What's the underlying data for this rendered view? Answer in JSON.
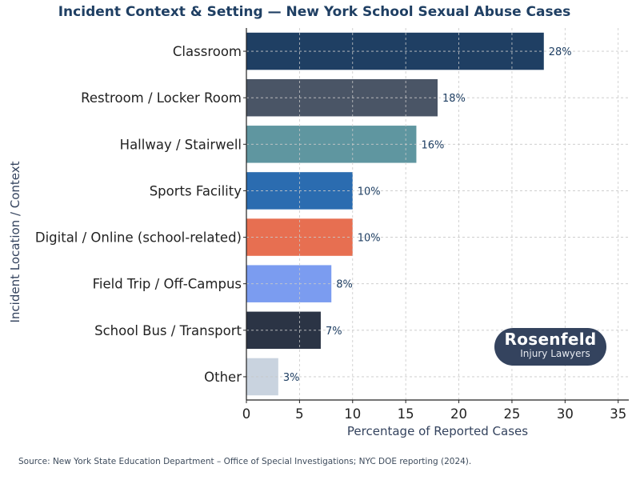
{
  "title": "Incident Context & Setting — New York School Sexual Abuse Cases",
  "source": "Source: New York State Education Department – Office of Special Investigations; NYC DOE reporting (2024).",
  "logo": {
    "line1": "Rosenfeld",
    "line2": "Injury Lawyers"
  },
  "chart_data": {
    "type": "bar",
    "orientation": "horizontal",
    "title": "Incident Context & Setting — New York School Sexual Abuse Cases",
    "xlabel": "Percentage of Reported Cases",
    "ylabel": "Incident Location / Context",
    "categories": [
      "Classroom",
      "Restroom / Locker Room",
      "Hallway / Stairwell",
      "Sports Facility",
      "Digital / Online (school-related)",
      "Field Trip / Off-Campus",
      "School Bus / Transport",
      "Other"
    ],
    "values": [
      28,
      18,
      16,
      10,
      10,
      8,
      7,
      3
    ],
    "data_labels": [
      "28%",
      "18%",
      "16%",
      "10%",
      "10%",
      "8%",
      "7%",
      "3%"
    ],
    "colors": [
      "#1f3f63",
      "#4a5566",
      "#5f96a0",
      "#2b6cb0",
      "#e76f51",
      "#7b9cf0",
      "#2b3445",
      "#c9d3df"
    ],
    "xlim": [
      0,
      36
    ],
    "xticks": [
      0,
      5,
      10,
      15,
      20,
      25,
      30,
      35
    ],
    "grid": true
  }
}
